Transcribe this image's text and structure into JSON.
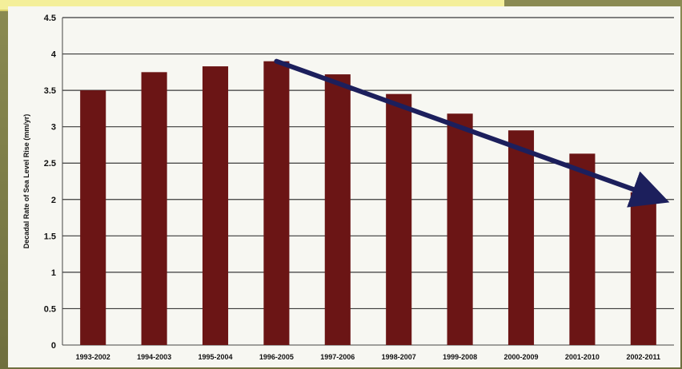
{
  "chart_data": {
    "type": "bar",
    "title": "",
    "xlabel": "",
    "ylabel": "Decadal Rate of Sea Level Rise (mm/yr)",
    "categories": [
      "1993-2002",
      "1994-2003",
      "1995-2004",
      "1996-2005",
      "1997-2006",
      "1998-2007",
      "1999-2008",
      "2000-2009",
      "2001-2010",
      "2002-2011"
    ],
    "values": [
      3.5,
      3.75,
      3.83,
      3.9,
      3.72,
      3.45,
      3.18,
      2.95,
      2.63,
      2.1
    ],
    "ylim": [
      0,
      4.5
    ],
    "yticks": [
      "0",
      "0.5",
      "1",
      "1.5",
      "2",
      "2.5",
      "3",
      "3.5",
      "4",
      "4.5"
    ],
    "grid": true,
    "legend": "none",
    "bar_color": "#6b1515",
    "annotation": {
      "type": "trend-arrow",
      "color": "#1c1f5c",
      "from": {
        "category": "1996-2005",
        "value": 3.9
      },
      "to": {
        "category": "2002-2011",
        "value": 2.05
      }
    }
  }
}
